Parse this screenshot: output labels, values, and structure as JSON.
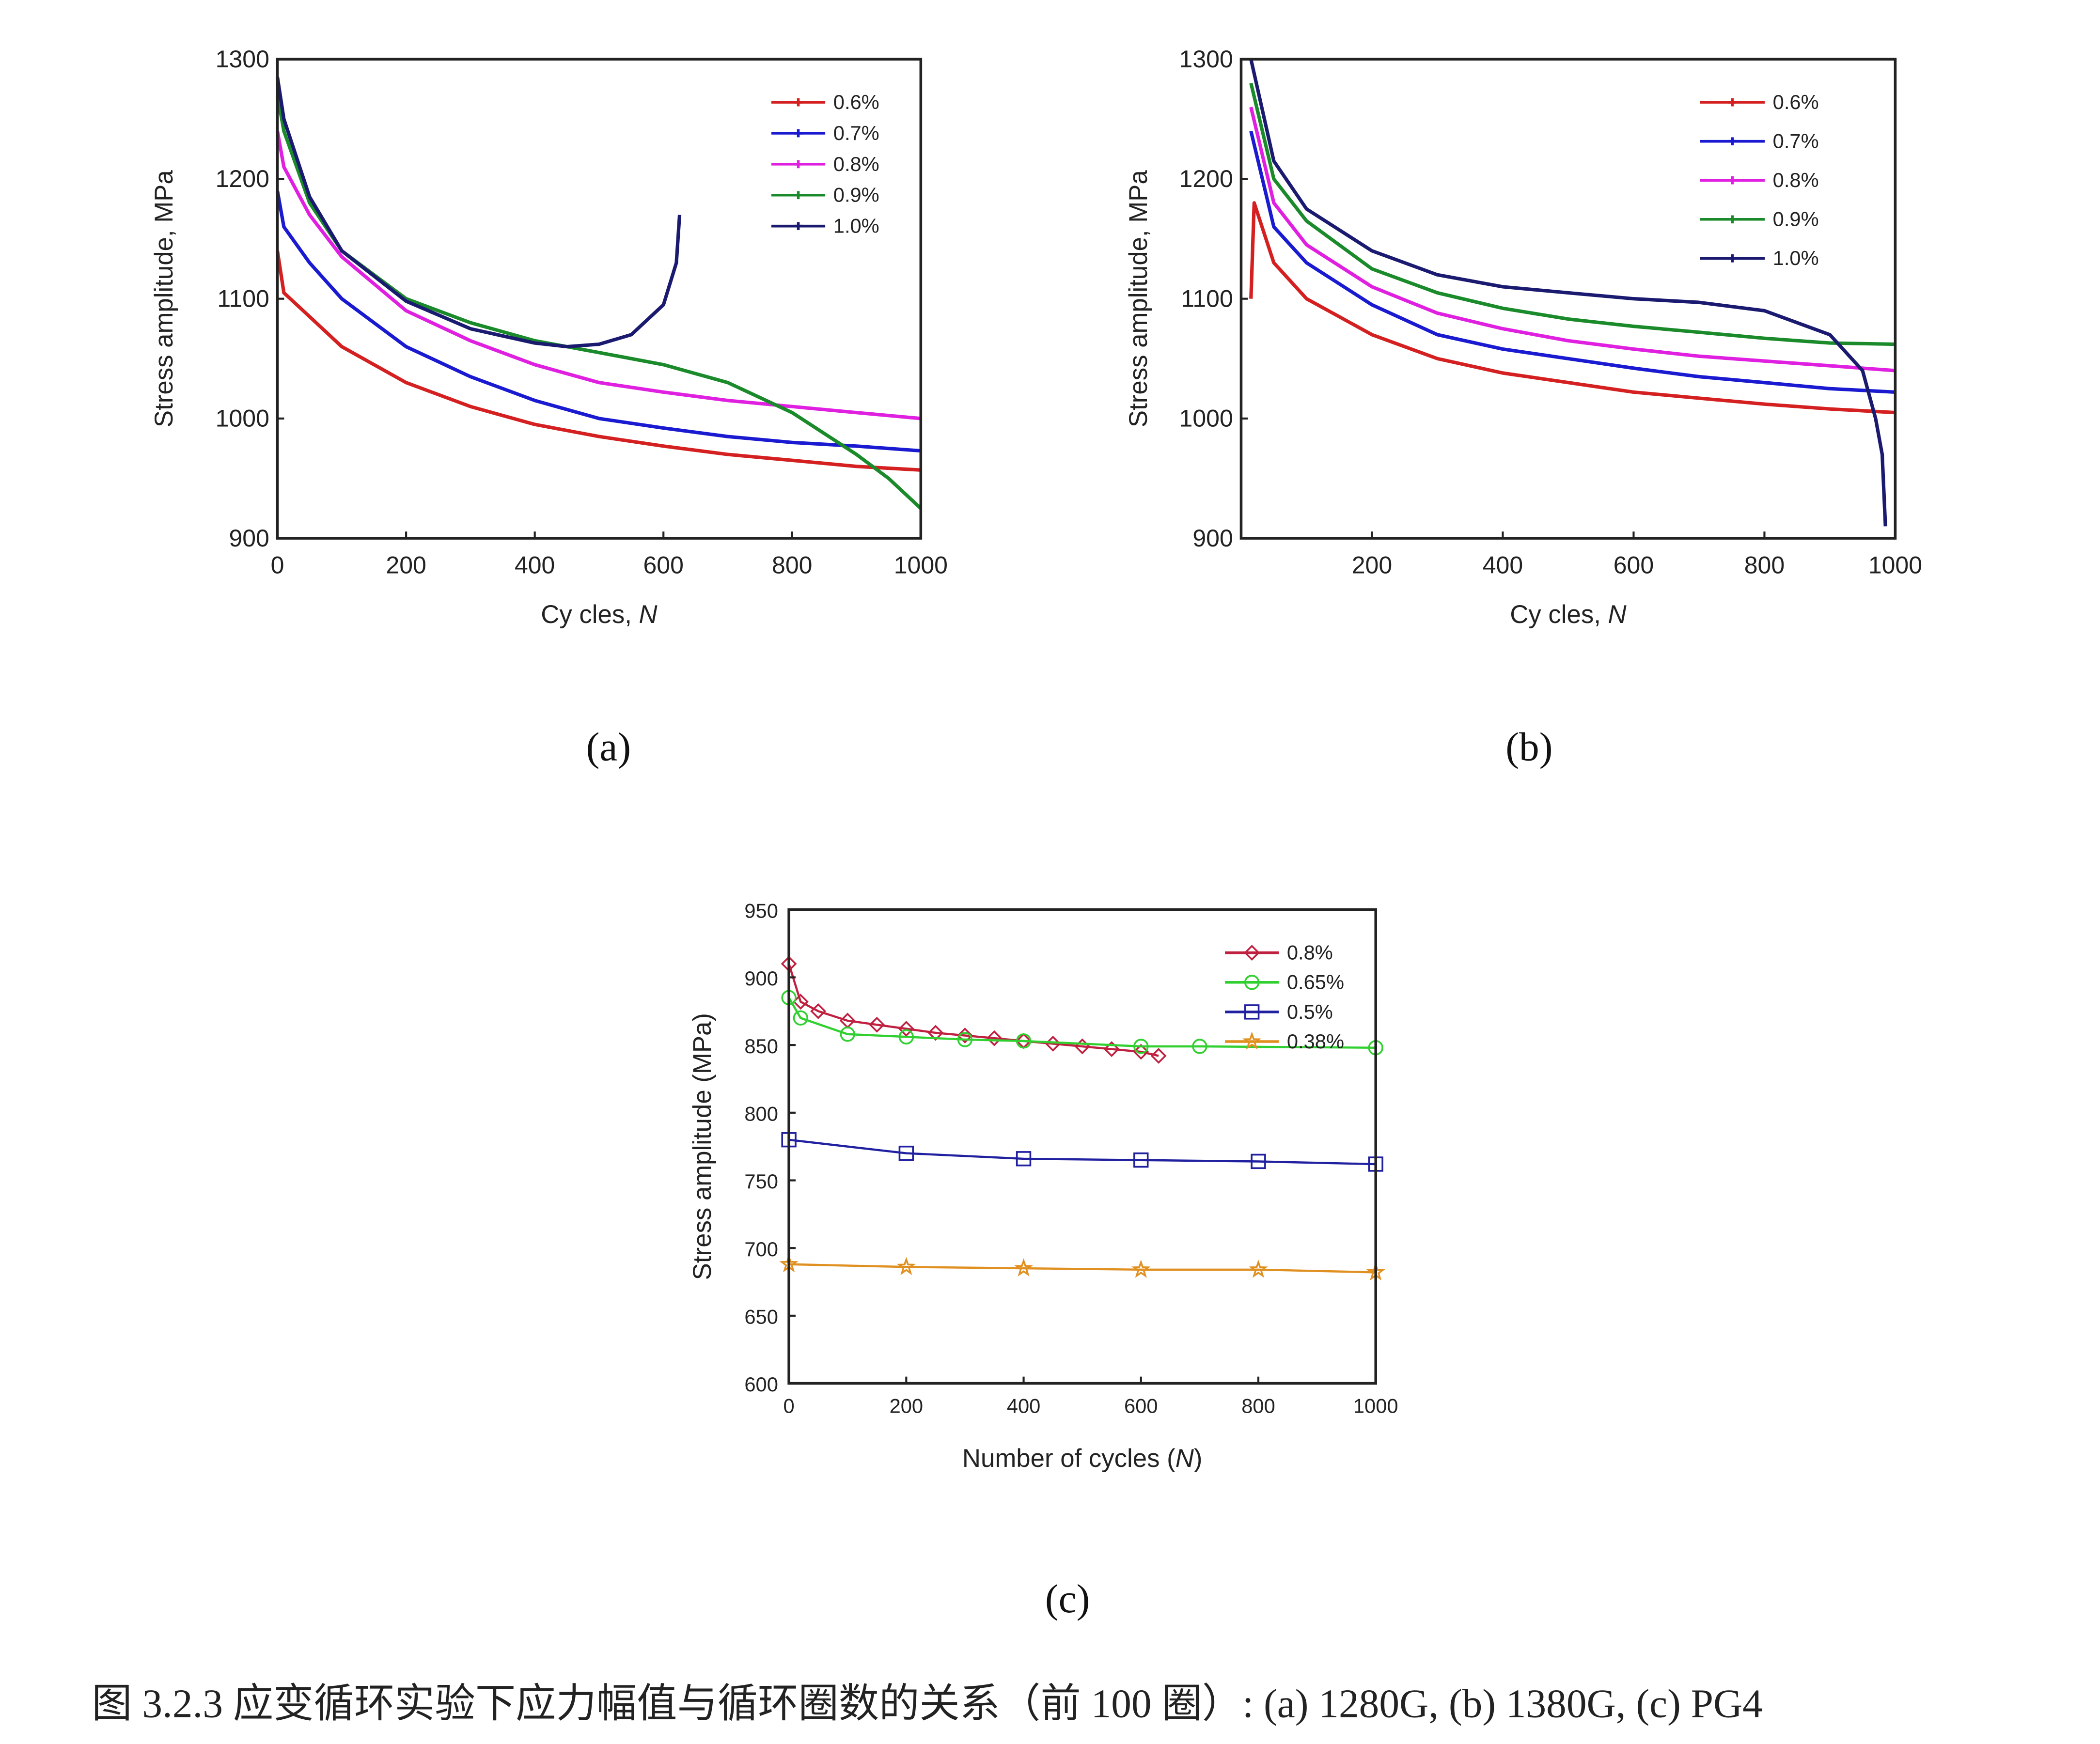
{
  "caption": "图 3.2.3 应变循环实验下应力幅值与循环圈数的关系（前 100 圈）: (a) 1280G, (b) 1380G, (c) PG4",
  "chart_data": [
    {
      "type": "line",
      "panel_label": "(a)",
      "ylabel": "Stress amplitude, MPa",
      "xlabel": "Cy cles, ",
      "xlabel_var": "N",
      "xlabel_end": "",
      "xlim": [
        0,
        1000
      ],
      "ylim": [
        900,
        1300
      ],
      "xticks": [
        "0",
        "200",
        "400",
        "600",
        "800",
        "1000"
      ],
      "xtick_values": [
        0,
        200,
        400,
        600,
        800,
        1000
      ],
      "yticks": [
        "900",
        "1000",
        "1100",
        "1200",
        "1300"
      ],
      "ytick_values": [
        900,
        1000,
        1100,
        1200,
        1300
      ],
      "legend_position": "top-right",
      "series": [
        {
          "name": "0.6%",
          "color": "#d42020",
          "marker": "tick",
          "x": [
            0,
            10,
            50,
            100,
            200,
            300,
            400,
            500,
            600,
            700,
            800,
            900,
            1000
          ],
          "y": [
            1140,
            1105,
            1085,
            1060,
            1030,
            1010,
            995,
            985,
            977,
            970,
            965,
            960,
            957
          ]
        },
        {
          "name": "0.7%",
          "color": "#1a1ad0",
          "marker": "tick",
          "x": [
            0,
            10,
            50,
            100,
            200,
            300,
            400,
            500,
            600,
            700,
            800,
            900,
            1000
          ],
          "y": [
            1190,
            1160,
            1130,
            1100,
            1060,
            1035,
            1015,
            1000,
            992,
            985,
            980,
            977,
            973
          ]
        },
        {
          "name": "0.8%",
          "color": "#e020e0",
          "marker": "tick",
          "x": [
            0,
            10,
            50,
            100,
            200,
            300,
            400,
            500,
            600,
            700,
            800,
            900,
            1000
          ],
          "y": [
            1240,
            1210,
            1170,
            1135,
            1090,
            1065,
            1045,
            1030,
            1022,
            1015,
            1010,
            1005,
            1000
          ]
        },
        {
          "name": "0.9%",
          "color": "#1a8a2a",
          "marker": "tick",
          "x": [
            0,
            10,
            50,
            100,
            200,
            300,
            400,
            500,
            600,
            700,
            800,
            900,
            950,
            1000
          ],
          "y": [
            1270,
            1240,
            1180,
            1140,
            1100,
            1080,
            1065,
            1055,
            1045,
            1030,
            1005,
            970,
            950,
            925
          ]
        },
        {
          "name": "1.0%",
          "color": "#1a1a70",
          "marker": "tick",
          "x": [
            0,
            10,
            50,
            100,
            200,
            300,
            400,
            450,
            500,
            550,
            600,
            620,
            625
          ],
          "y": [
            1285,
            1250,
            1185,
            1140,
            1098,
            1075,
            1063,
            1060,
            1062,
            1070,
            1095,
            1130,
            1170
          ]
        }
      ]
    },
    {
      "type": "line",
      "panel_label": "(b)",
      "ylabel": "Stress amplitude, MPa",
      "xlabel": "Cy cles, ",
      "xlabel_var": "N",
      "xlabel_end": "",
      "xlim": [
        0,
        1000
      ],
      "ylim": [
        900,
        1300
      ],
      "xticks": [
        "200",
        "400",
        "600",
        "800",
        "1000"
      ],
      "xtick_values": [
        200,
        400,
        600,
        800,
        1000
      ],
      "yticks": [
        "900",
        "1000",
        "1100",
        "1200",
        "1300"
      ],
      "ytick_values": [
        900,
        1000,
        1100,
        1200,
        1300
      ],
      "legend_position": "top-right",
      "series": [
        {
          "name": "0.6%",
          "color": "#d42020",
          "marker": "tick",
          "x": [
            15,
            20,
            50,
            100,
            200,
            300,
            400,
            500,
            600,
            700,
            800,
            900,
            1000
          ],
          "y": [
            1100,
            1180,
            1130,
            1100,
            1070,
            1050,
            1038,
            1030,
            1022,
            1017,
            1012,
            1008,
            1005
          ]
        },
        {
          "name": "0.7%",
          "color": "#1a1ad0",
          "marker": "tick",
          "x": [
            15,
            50,
            100,
            200,
            300,
            400,
            500,
            600,
            700,
            800,
            900,
            1000
          ],
          "y": [
            1240,
            1160,
            1130,
            1095,
            1070,
            1058,
            1050,
            1042,
            1035,
            1030,
            1025,
            1022
          ]
        },
        {
          "name": "0.8%",
          "color": "#e020e0",
          "marker": "tick",
          "x": [
            15,
            50,
            100,
            200,
            300,
            400,
            500,
            600,
            700,
            800,
            900,
            1000
          ],
          "y": [
            1260,
            1180,
            1145,
            1110,
            1088,
            1075,
            1065,
            1058,
            1052,
            1048,
            1044,
            1040
          ]
        },
        {
          "name": "0.9%",
          "color": "#1a8a2a",
          "marker": "tick",
          "x": [
            15,
            50,
            100,
            200,
            300,
            400,
            500,
            600,
            700,
            800,
            900,
            1000
          ],
          "y": [
            1280,
            1200,
            1165,
            1125,
            1105,
            1092,
            1083,
            1077,
            1072,
            1067,
            1063,
            1062
          ]
        },
        {
          "name": "1.0%",
          "color": "#1a1a70",
          "marker": "tick",
          "x": [
            15,
            50,
            100,
            200,
            300,
            400,
            500,
            600,
            700,
            800,
            900,
            950,
            970,
            980,
            985
          ],
          "y": [
            1300,
            1215,
            1175,
            1140,
            1120,
            1110,
            1105,
            1100,
            1097,
            1090,
            1070,
            1040,
            1000,
            970,
            910
          ]
        }
      ]
    },
    {
      "type": "line",
      "panel_label": "(c)",
      "ylabel": "Stress amplitude (MPa)",
      "xlabel": "Number of cycles (",
      "xlabel_var": "N",
      "xlabel_end": ")",
      "xlim": [
        0,
        1000
      ],
      "ylim": [
        600,
        950
      ],
      "xticks": [
        "0",
        "200",
        "400",
        "600",
        "800",
        "1000"
      ],
      "xtick_values": [
        0,
        200,
        400,
        600,
        800,
        1000
      ],
      "yticks": [
        "600",
        "650",
        "700",
        "750",
        "800",
        "850",
        "900",
        "950"
      ],
      "ytick_values": [
        600,
        650,
        700,
        750,
        800,
        850,
        900,
        950
      ],
      "legend_position": "top-right",
      "series": [
        {
          "name": "0.8%",
          "color": "#c02040",
          "marker": "diamond",
          "x": [
            0,
            20,
            50,
            100,
            150,
            200,
            250,
            300,
            350,
            400,
            450,
            500,
            550,
            600,
            630
          ],
          "y": [
            910,
            882,
            875,
            868,
            865,
            862,
            859,
            857,
            855,
            853,
            851,
            849,
            847,
            845,
            842
          ]
        },
        {
          "name": "0.65%",
          "color": "#30d030",
          "marker": "circle",
          "x": [
            0,
            20,
            100,
            200,
            300,
            400,
            600,
            700,
            1000
          ],
          "y": [
            885,
            870,
            858,
            856,
            854,
            853,
            849,
            849,
            848
          ]
        },
        {
          "name": "0.5%",
          "color": "#2020a0",
          "marker": "square",
          "x": [
            0,
            200,
            400,
            600,
            800,
            1000
          ],
          "y": [
            780,
            770,
            766,
            765,
            764,
            762
          ]
        },
        {
          "name": "0.38%",
          "color": "#e09020",
          "marker": "star",
          "x": [
            0,
            200,
            400,
            600,
            800,
            1000
          ],
          "y": [
            688,
            686,
            685,
            684,
            684,
            682
          ]
        }
      ]
    }
  ]
}
